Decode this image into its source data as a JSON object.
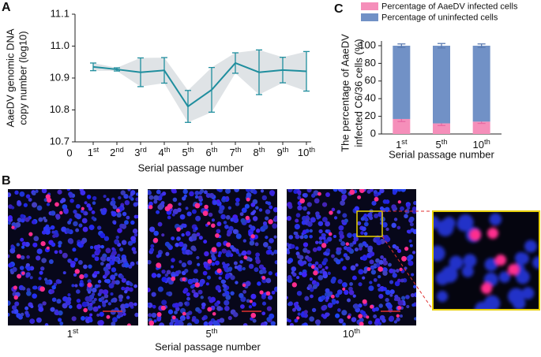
{
  "panel_labels": {
    "a": "A",
    "b": "B",
    "c": "C"
  },
  "chart_data": [
    {
      "type": "line",
      "x": [
        1,
        2,
        3,
        4,
        5,
        6,
        7,
        8,
        9,
        10
      ],
      "series": [
        {
          "name": null,
          "color": "#1f8e9e",
          "values": [
            10.935,
            10.927,
            10.918,
            10.924,
            10.811,
            10.863,
            10.947,
            10.918,
            10.925,
            10.921
          ],
          "errors": [
            0.012,
            0.005,
            0.045,
            0.04,
            0.05,
            0.07,
            0.032,
            0.07,
            0.04,
            0.062
          ]
        }
      ],
      "band_color": "#dfe3e6",
      "xlim": [
        0,
        10
      ],
      "xticks": [
        0,
        {
          "value": 1,
          "label": "1st"
        },
        {
          "value": 2,
          "label": "2nd"
        },
        {
          "value": 3,
          "label": "3rd"
        },
        {
          "value": 4,
          "label": "4th"
        },
        {
          "value": 5,
          "label": "5th"
        },
        {
          "value": 6,
          "label": "6th"
        },
        {
          "value": 7,
          "label": "7th"
        },
        {
          "value": 8,
          "label": "8th"
        },
        {
          "value": 9,
          "label": "9th"
        },
        {
          "value": 10,
          "label": "10th"
        }
      ],
      "ylim": [
        10.7,
        11.1
      ],
      "yticks": [
        10.7,
        10.8,
        10.9,
        {
          "value": 11,
          "label": "11.0"
        },
        11.1
      ],
      "xlabel": "Serial passage number",
      "ylabel": [
        "AaeDV genomic DNA",
        "copy number (log10)"
      ]
    },
    {
      "type": "stacked-bar",
      "categories": [
        "1st",
        "5th",
        "10th"
      ],
      "series": [
        {
          "name": "Percentage of AaeDV infected cells",
          "color": "#f58fba",
          "values": [
            17,
            12,
            14
          ],
          "errors": [
            3,
            2.5,
            2
          ]
        },
        {
          "name": "Percentage of uninfected cells",
          "color": "#7191c6",
          "values": [
            83,
            88,
            86
          ],
          "errors": [
            2,
            2.5,
            2
          ]
        }
      ],
      "ylim": [
        0,
        100
      ],
      "yticks": [
        0,
        20,
        40,
        60,
        80,
        100
      ],
      "xlabel": "Serial passage number",
      "ylabel": [
        "The percentage of AaeDV",
        "infected C6/36 cells (%)"
      ],
      "legend": "top"
    }
  ],
  "panel_b": {
    "labels": [
      "1st",
      "5th",
      "10th"
    ],
    "xlabel": "Serial passage number"
  }
}
